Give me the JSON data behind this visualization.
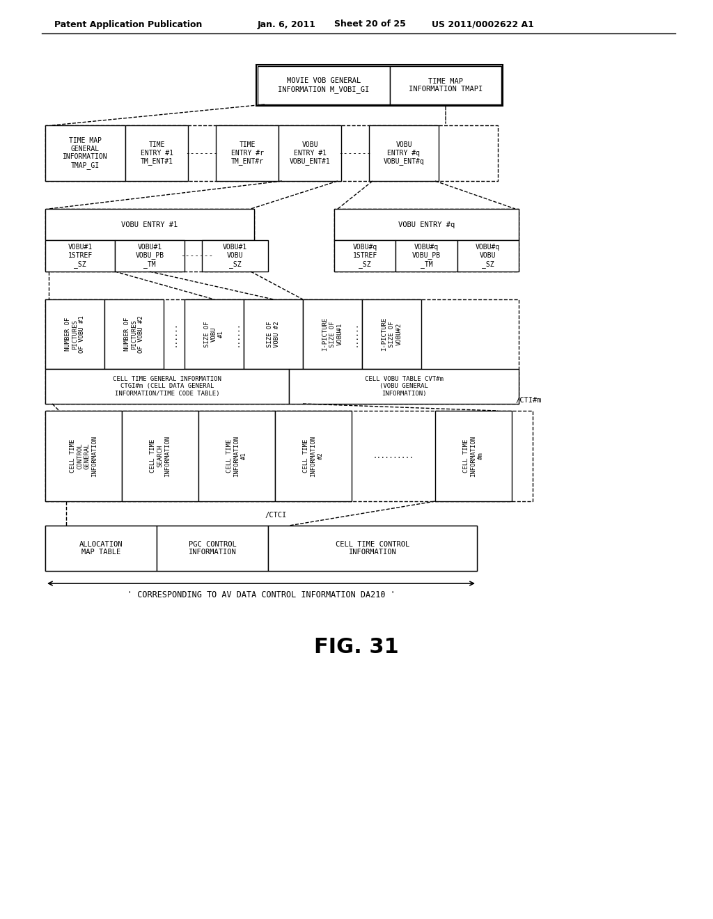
{
  "bg_color": "#ffffff",
  "header_text": "Patent Application Publication",
  "header_date": "Jan. 6, 2011",
  "header_sheet": "Sheet 20 of 25",
  "header_patent": "US 2011/0002622 A1",
  "figure_label": "FIG. 31",
  "bottom_label": "' CORRESPONDING TO AV DATA CONTROL INFORMATION DA210 '",
  "font_size": 7.5
}
